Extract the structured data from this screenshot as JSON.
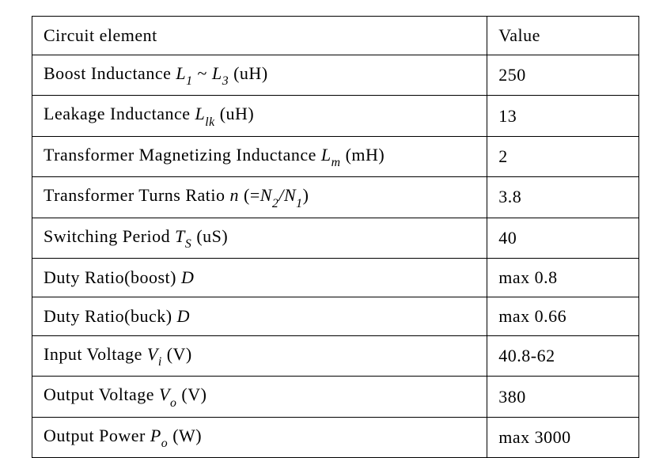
{
  "table": {
    "header": {
      "left": "Circuit element",
      "right": "Value"
    },
    "rows": [
      {
        "symbol_prefix": "Boost Inductance ",
        "sym1": "L",
        "sub1": "1",
        "mid": " ~ ",
        "sym2": "L",
        "sub2": "3",
        "suffix": " (uH)",
        "value": "250"
      },
      {
        "symbol_prefix": "Leakage Inductance ",
        "sym1": "L",
        "sub1": "lk",
        "mid": "",
        "sym2": "",
        "sub2": "",
        "suffix": " (uH)",
        "value": "13"
      },
      {
        "symbol_prefix": "Transformer Magnetizing Inductance ",
        "sym1": "L",
        "sub1": "m",
        "mid": "",
        "sym2": "",
        "sub2": "",
        "suffix": " (mH)",
        "value": "2"
      },
      {
        "symbol_prefix": "Transformer Turns Ratio ",
        "sym1": "n",
        "sub1": "",
        "mid": " (=",
        "sym2": "N",
        "sub2": "2",
        "sym3": "/N",
        "sub3": "1",
        "suffix": ")",
        "value": "3.8"
      },
      {
        "symbol_prefix": "Switching Period ",
        "sym1": "T",
        "sub1": "S",
        "mid": "",
        "sym2": "",
        "sub2": "",
        "suffix": " (uS)",
        "value": "40"
      },
      {
        "symbol_prefix": "Duty Ratio(boost) ",
        "sym1": "D",
        "sub1": "",
        "mid": "",
        "sym2": "",
        "sub2": "",
        "suffix": "",
        "value": "max 0.8"
      },
      {
        "symbol_prefix": "Duty Ratio(buck) ",
        "sym1": "D",
        "sub1": "",
        "mid": "",
        "sym2": "",
        "sub2": "",
        "suffix": "",
        "value": "max 0.66"
      },
      {
        "symbol_prefix": "Input Voltage ",
        "sym1": "V",
        "sub1": "i",
        "mid": "",
        "sym2": "",
        "sub2": "",
        "suffix": " (V)",
        "value": "40.8-62"
      },
      {
        "symbol_prefix": "Output Voltage ",
        "sym1": "V",
        "sub1": "o",
        "mid": "",
        "sym2": "",
        "sub2": "",
        "suffix": " (V)",
        "value": "380"
      },
      {
        "symbol_prefix": "Output Power ",
        "sym1": "P",
        "sub1": "o",
        "mid": "",
        "sym2": "",
        "sub2": "",
        "suffix": " (W)",
        "value": "max 3000"
      }
    ]
  },
  "style": {
    "font_family": "Times New Roman",
    "font_size_pt": 22,
    "border_color": "#000000",
    "text_color": "#000000",
    "background_color": "#ffffff",
    "col_left_width_pct": 75,
    "col_right_width_pct": 25
  }
}
